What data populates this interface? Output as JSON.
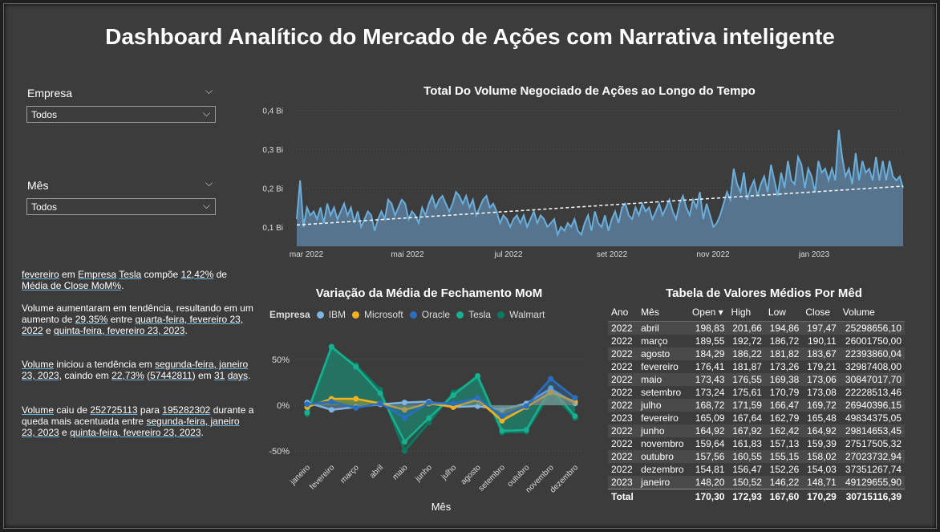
{
  "title": "Dashboard Analítico do Mercado de Ações com Narrativa inteligente",
  "slicers": {
    "empresa": {
      "label": "Empresa",
      "value": "Todos"
    },
    "mes": {
      "label": "Mês",
      "value": "Todos"
    }
  },
  "narrative": {
    "p1": [
      "fevereiro",
      " em ",
      "Empresa",
      " ",
      "Tesla",
      " compõe ",
      "12,42%",
      " de ",
      "Média de Close MoM%",
      "."
    ],
    "p2": [
      " Volume aumentaram em tendência, resultando em um aumento de ",
      "29,35%",
      " entre ",
      "quarta-feira, fevereiro 23, 2022",
      " e ",
      "quinta-feira, fevereiro 23, 2023",
      "."
    ],
    "p3": [
      "Volume",
      " iniciou a tendência em ",
      "segunda-feira, janeiro 23, 2023",
      ", caindo em ",
      "22,73%",
      " (",
      "57442811",
      ") em ",
      "31",
      " ",
      "days",
      "."
    ],
    "p4": [
      "Volume",
      " caiu de ",
      "252725113",
      " para ",
      "195282302",
      " durante a queda mais acentuada entre ",
      "segunda-feira, janeiro 23, 2023",
      " e ",
      "quinta-feira, fevereiro 23, 2023",
      "."
    ]
  },
  "volume_chart": {
    "title": "Total Do Volume Negociado de Ações ao Longo do Tempo",
    "y_ticks": [
      "0,1 Bi",
      "0,2 Bi",
      "0,3 Bi",
      "0,4 Bi"
    ],
    "x_ticks": [
      "mar 2022",
      "mai 2022",
      "jul 2022",
      "set 2022",
      "nov 2022",
      "jan 2023"
    ]
  },
  "mom_chart": {
    "title": "Variação da Média de Fechamento MoM",
    "legend_title": "Empresa",
    "x_title": "Mês",
    "y_ticks": [
      "50%",
      "0%",
      "-50%"
    ]
  },
  "table": {
    "title": "Tabela de Valores Médios Por Mêd",
    "headers": [
      "Ano",
      "Mês",
      "Open",
      "High",
      "Low",
      "Close",
      "Volume"
    ],
    "rows": [
      [
        "2022",
        "abril",
        "198,83",
        "201,66",
        "194,86",
        "197,47",
        "25298656,10"
      ],
      [
        "2022",
        "março",
        "189,55",
        "192,72",
        "186,72",
        "190,11",
        "26001750,00"
      ],
      [
        "2022",
        "agosto",
        "184,29",
        "186,22",
        "181,82",
        "183,67",
        "22393860,04"
      ],
      [
        "2022",
        "fevereiro",
        "176,41",
        "181,87",
        "173,26",
        "179,21",
        "32987408,00"
      ],
      [
        "2022",
        "maio",
        "173,43",
        "176,55",
        "169,38",
        "173,06",
        "30847017,70"
      ],
      [
        "2022",
        "setembro",
        "173,24",
        "175,61",
        "170,79",
        "173,08",
        "22228513,46"
      ],
      [
        "2022",
        "julho",
        "168,72",
        "171,59",
        "166,47",
        "169,72",
        "26940396,15"
      ],
      [
        "2023",
        "fevereiro",
        "165,09",
        "167,64",
        "162,79",
        "165,48",
        "49834375,05"
      ],
      [
        "2022",
        "junho",
        "164,92",
        "167,92",
        "162,42",
        "164,92",
        "29814653,45"
      ],
      [
        "2022",
        "novembro",
        "159,64",
        "161,83",
        "157,13",
        "159,39",
        "27517505,32"
      ],
      [
        "2022",
        "outubro",
        "157,56",
        "160,55",
        "155,15",
        "158,02",
        "27023732,94"
      ],
      [
        "2022",
        "dezembro",
        "154,81",
        "156,47",
        "152,26",
        "154,03",
        "37351267,74"
      ],
      [
        "2023",
        "janeiro",
        "148,20",
        "150,52",
        "146,22",
        "148,71",
        "49129655,90"
      ]
    ],
    "total": [
      "Total",
      "",
      "170,30",
      "172,93",
      "167,60",
      "170,29",
      "30715116,39"
    ]
  },
  "chart_data": [
    {
      "type": "area",
      "title": "Total Do Volume Negociado de Ações ao Longo do Tempo",
      "y_unit": "Bi",
      "ylim": [
        0.05,
        0.42
      ],
      "x_range": [
        "fev 2022",
        "fev 2023"
      ],
      "series_color": "#6aaedb",
      "trend": {
        "start": 0.105,
        "end": 0.205
      },
      "values": [
        0.12,
        0.22,
        0.1,
        0.15,
        0.13,
        0.14,
        0.12,
        0.15,
        0.11,
        0.16,
        0.13,
        0.15,
        0.12,
        0.14,
        0.16,
        0.13,
        0.15,
        0.11,
        0.14,
        0.1,
        0.12,
        0.14,
        0.13,
        0.09,
        0.12,
        0.14,
        0.12,
        0.17,
        0.16,
        0.13,
        0.15,
        0.17,
        0.16,
        0.12,
        0.14,
        0.13,
        0.11,
        0.15,
        0.13,
        0.16,
        0.18,
        0.15,
        0.17,
        0.18,
        0.16,
        0.14,
        0.16,
        0.19,
        0.18,
        0.16,
        0.18,
        0.15,
        0.17,
        0.13,
        0.15,
        0.17,
        0.18,
        0.15,
        0.16,
        0.14,
        0.11,
        0.13,
        0.12,
        0.1,
        0.12,
        0.13,
        0.11,
        0.13,
        0.1,
        0.12,
        0.14,
        0.11,
        0.13,
        0.12,
        0.1,
        0.11,
        0.12,
        0.08,
        0.1,
        0.09,
        0.11,
        0.1,
        0.12,
        0.09,
        0.08,
        0.11,
        0.13,
        0.09,
        0.14,
        0.11,
        0.1,
        0.13,
        0.09,
        0.12,
        0.14,
        0.11,
        0.15,
        0.16,
        0.13,
        0.12,
        0.15,
        0.13,
        0.16,
        0.14,
        0.15,
        0.12,
        0.14,
        0.16,
        0.13,
        0.15,
        0.17,
        0.14,
        0.12,
        0.16,
        0.18,
        0.15,
        0.13,
        0.17,
        0.15,
        0.19,
        0.12,
        0.16,
        0.13,
        0.1,
        0.11,
        0.13,
        0.16,
        0.19,
        0.17,
        0.25,
        0.21,
        0.19,
        0.24,
        0.17,
        0.2,
        0.22,
        0.18,
        0.21,
        0.23,
        0.19,
        0.26,
        0.22,
        0.18,
        0.24,
        0.2,
        0.27,
        0.22,
        0.21,
        0.28,
        0.26,
        0.2,
        0.25,
        0.23,
        0.19,
        0.27,
        0.24,
        0.25,
        0.22,
        0.25,
        0.22,
        0.35,
        0.28,
        0.23,
        0.25,
        0.21,
        0.29,
        0.22,
        0.27,
        0.24,
        0.25,
        0.22,
        0.28,
        0.22,
        0.27,
        0.22,
        0.27,
        0.23,
        0.22,
        0.23,
        0.2
      ]
    },
    {
      "type": "line",
      "title": "Variação da Média de Fechamento MoM",
      "xlabel": "Mês",
      "categories": [
        "janeiro",
        "fevereiro",
        "março",
        "abril",
        "maio",
        "junho",
        "julho",
        "agosto",
        "setembro",
        "outubro",
        "novembro",
        "dezembro"
      ],
      "ylim": [
        -60,
        75
      ],
      "y_unit": "%",
      "series": [
        {
          "name": "IBM",
          "color": "#7eb6e3",
          "values": [
            3,
            -5,
            -2,
            1,
            3,
            4,
            -2,
            -1,
            -5,
            2,
            18,
            2
          ]
        },
        {
          "name": "Microsoft",
          "color": "#f2b21b",
          "values": [
            -2,
            7,
            7,
            2,
            -5,
            2,
            -2,
            6,
            -17,
            -2,
            14,
            4
          ]
        },
        {
          "name": "Oracle",
          "color": "#2a6fbf",
          "values": [
            1,
            4,
            -3,
            2,
            -14,
            3,
            2,
            8,
            -12,
            -1,
            29,
            8
          ]
        },
        {
          "name": "Tesla",
          "color": "#18b090",
          "values": [
            -8,
            64,
            42,
            13,
            -40,
            -14,
            11,
            32,
            -28,
            -27,
            19,
            -12
          ]
        },
        {
          "name": "Walmart",
          "color": "#0c7a60",
          "values": [
            -10,
            62,
            44,
            17,
            -50,
            -19,
            14,
            29,
            -30,
            -29,
            14,
            -14
          ]
        }
      ]
    }
  ]
}
